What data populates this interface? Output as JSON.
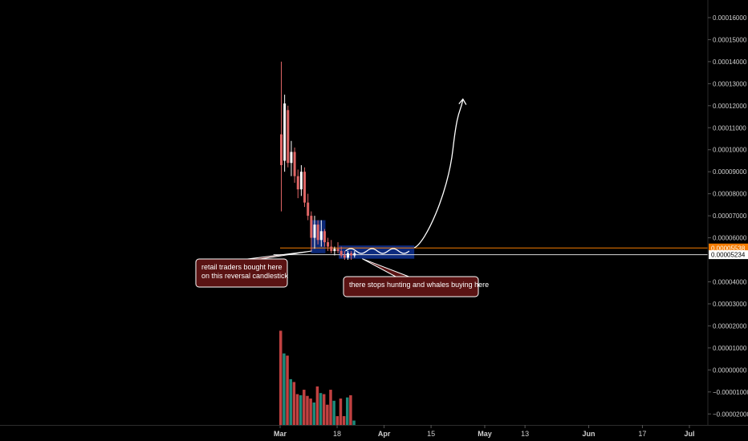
{
  "chart_data": {
    "type": "candlestick",
    "y_axis": {
      "position": "right",
      "range": [
        -2.5e-05,
        0.000168
      ],
      "ticks": [
        {
          "value": 0.00016,
          "label": "0.00016000"
        },
        {
          "value": 0.00015,
          "label": "0.00015000"
        },
        {
          "value": 0.00014,
          "label": "0.00014000"
        },
        {
          "value": 0.00013,
          "label": "0.00013000"
        },
        {
          "value": 0.00012,
          "label": "0.00012000"
        },
        {
          "value": 0.00011,
          "label": "0.00011000"
        },
        {
          "value": 0.0001,
          "label": "0.00010000"
        },
        {
          "value": 9e-05,
          "label": "0.00009000"
        },
        {
          "value": 8e-05,
          "label": "0.00008000"
        },
        {
          "value": 7e-05,
          "label": "0.00007000"
        },
        {
          "value": 6e-05,
          "label": "0.00006000"
        },
        {
          "value": 4e-05,
          "label": "0.00004000"
        },
        {
          "value": 3e-05,
          "label": "0.00003000"
        },
        {
          "value": 2e-05,
          "label": "0.00002000"
        },
        {
          "value": 1e-05,
          "label": "0.00001000"
        },
        {
          "value": 0.0,
          "label": "0.00000000"
        },
        {
          "value": -1e-05,
          "label": "−0.00001000"
        },
        {
          "value": -2e-05,
          "label": "−0.00002000"
        }
      ]
    },
    "x_axis": {
      "range_days": [
        -2,
        133
      ],
      "ticks": [
        {
          "day": 0,
          "label": "Mar",
          "bold": true
        },
        {
          "day": 17,
          "label": "18",
          "bold": false
        },
        {
          "day": 31,
          "label": "Apr",
          "bold": true
        },
        {
          "day": 45,
          "label": "15",
          "bold": false
        },
        {
          "day": 61,
          "label": "May",
          "bold": true
        },
        {
          "day": 73,
          "label": "13",
          "bold": false
        },
        {
          "day": 92,
          "label": "Jun",
          "bold": true
        },
        {
          "day": 108,
          "label": "17",
          "bold": false
        },
        {
          "day": 122,
          "label": "Jul",
          "bold": true
        }
      ]
    },
    "price_tags": [
      {
        "value": 5.538e-05,
        "label": "0.00005538",
        "bg": "#f57c00",
        "fg": "#ffffff",
        "line_color": "#f57c00",
        "line_start_day": 0
      },
      {
        "value": 5.234e-05,
        "label": "0.00005234",
        "bg": "#ffffff",
        "fg": "#000000",
        "line_color": "#d9d9d9",
        "line_start_day": -2
      }
    ],
    "candles": [
      {
        "open": 0.000107,
        "high": 0.00014,
        "low": 7.2e-05,
        "close": 9.3e-05
      },
      {
        "open": 9.5e-05,
        "high": 0.000125,
        "low": 9e-05,
        "close": 0.000121
      },
      {
        "open": 0.000118,
        "high": 0.00012,
        "low": 9.2e-05,
        "close": 9.4e-05
      },
      {
        "open": 9.4e-05,
        "high": 0.000104,
        "low": 8.8e-05,
        "close": 9.9e-05
      },
      {
        "open": 9.9e-05,
        "high": 0.000101,
        "low": 8.5e-05,
        "close": 8.8e-05
      },
      {
        "open": 8.8e-05,
        "high": 9.1e-05,
        "low": 7.8e-05,
        "close": 8.2e-05
      },
      {
        "open": 8.2e-05,
        "high": 9.3e-05,
        "low": 7.9e-05,
        "close": 9e-05
      },
      {
        "open": 9e-05,
        "high": 9.2e-05,
        "low": 7.4e-05,
        "close": 7.6e-05
      },
      {
        "open": 7.6e-05,
        "high": 8e-05,
        "low": 6.8e-05,
        "close": 7e-05
      },
      {
        "open": 7e-05,
        "high": 7.2e-05,
        "low": 5.4e-05,
        "close": 6e-05
      },
      {
        "open": 6e-05,
        "high": 7e-05,
        "low": 5.5e-05,
        "close": 6.6e-05
      },
      {
        "open": 6.6e-05,
        "high": 6.8e-05,
        "low": 5.7e-05,
        "close": 5.9e-05
      },
      {
        "open": 5.9e-05,
        "high": 6.8e-05,
        "low": 5.6e-05,
        "close": 6.3e-05
      },
      {
        "open": 6.3e-05,
        "high": 6.4e-05,
        "low": 5.6e-05,
        "close": 5.8e-05
      },
      {
        "open": 5.8e-05,
        "high": 6e-05,
        "low": 5.4e-05,
        "close": 5.6e-05
      },
      {
        "open": 5.6e-05,
        "high": 5.9e-05,
        "low": 5.3e-05,
        "close": 5.4e-05
      },
      {
        "open": 5.4e-05,
        "high": 5.6e-05,
        "low": 5.2e-05,
        "close": 5.5e-05
      },
      {
        "open": 5.5e-05,
        "high": 5.8e-05,
        "low": 5.3e-05,
        "close": 5.4e-05
      },
      {
        "open": 5.4e-05,
        "high": 5.6e-05,
        "low": 5.1e-05,
        "close": 5.2e-05
      },
      {
        "open": 5.2e-05,
        "high": 5.4e-05,
        "low": 5e-05,
        "close": 5.1e-05
      },
      {
        "open": 5.1e-05,
        "high": 5.4e-05,
        "low": 5e-05,
        "close": 5.3e-05
      },
      {
        "open": 5.3e-05,
        "high": 5.4e-05,
        "low": 5e-05,
        "close": 5.2e-05
      },
      {
        "open": 5.2e-05,
        "high": 5.4e-05,
        "low": 5.1e-05,
        "close": 5.3e-05
      }
    ],
    "volume": [
      1.78e-05,
      7.5e-06,
      6.5e-06,
      -4.2e-06,
      -5.5e-06,
      -1.1e-05,
      -1.15e-05,
      -9e-06,
      -1.18e-05,
      -1.3e-05,
      -1.48e-05,
      -7.5e-06,
      -1.05e-05,
      -1.1e-05,
      -1.58e-05,
      -9e-06,
      -1.4e-05,
      -2.1e-05,
      -1.3e-05,
      -2.1e-05,
      -1.25e-05,
      -1.15e-05,
      -2.3e-05
    ],
    "colors": {
      "background": "#000000",
      "up": "#ffffff",
      "down": "#e06666",
      "volume_up": "#1d8a7a",
      "volume_down": "#c14141",
      "axis_text": "#cfcfcf",
      "annotation_fill": "#5a1313",
      "annotation_border": "#ffffff",
      "box_fill": "#0d2f8c",
      "arrow": "#ffffff"
    },
    "annotations": [
      {
        "text_lines": [
          "retail traders bought here",
          "on this reversal candlestick"
        ]
      },
      {
        "text_lines": [
          "there stops hunting and whales buying here"
        ]
      }
    ]
  }
}
